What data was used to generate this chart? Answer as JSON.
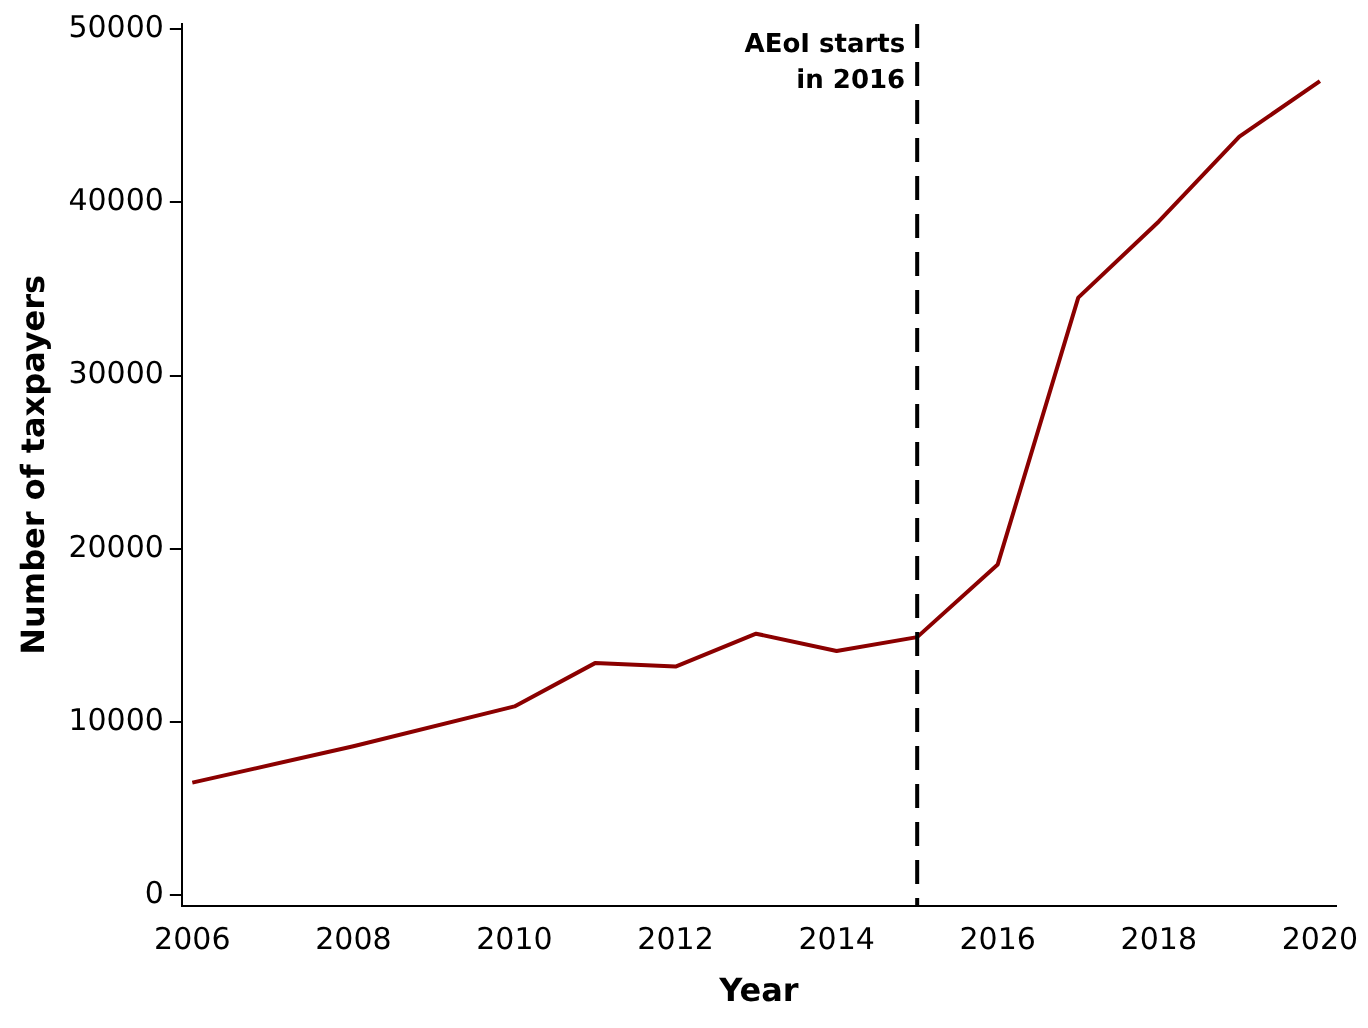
{
  "chart_data": {
    "type": "line",
    "xlabel": "Year",
    "ylabel": "Number of taxpayers",
    "x": [
      2006,
      2008,
      2010,
      2011,
      2012,
      2013,
      2014,
      2015,
      2016,
      2017,
      2018,
      2019,
      2020
    ],
    "series": [
      {
        "color": "#8b0000",
        "values": [
          6500,
          8600,
          10900,
          13400,
          13200,
          15100,
          14100,
          14900,
          19100,
          34500,
          38900,
          43800,
          47000
        ]
      }
    ],
    "xlim": [
      2005.87,
      2020.2
    ],
    "ylim": [
      -600,
      50300
    ],
    "xticks": [
      2006,
      2008,
      2010,
      2012,
      2014,
      2016,
      2018,
      2020
    ],
    "yticks": [
      0,
      10000,
      20000,
      30000,
      40000,
      50000
    ],
    "grid": false,
    "legend": false,
    "marker": "none",
    "line_style": "solid",
    "ref_lines": [
      {
        "axis": "x",
        "value": 2015,
        "label": "AEoI starts in 2016",
        "color": "#000000",
        "line_style": "dashed"
      }
    ]
  }
}
